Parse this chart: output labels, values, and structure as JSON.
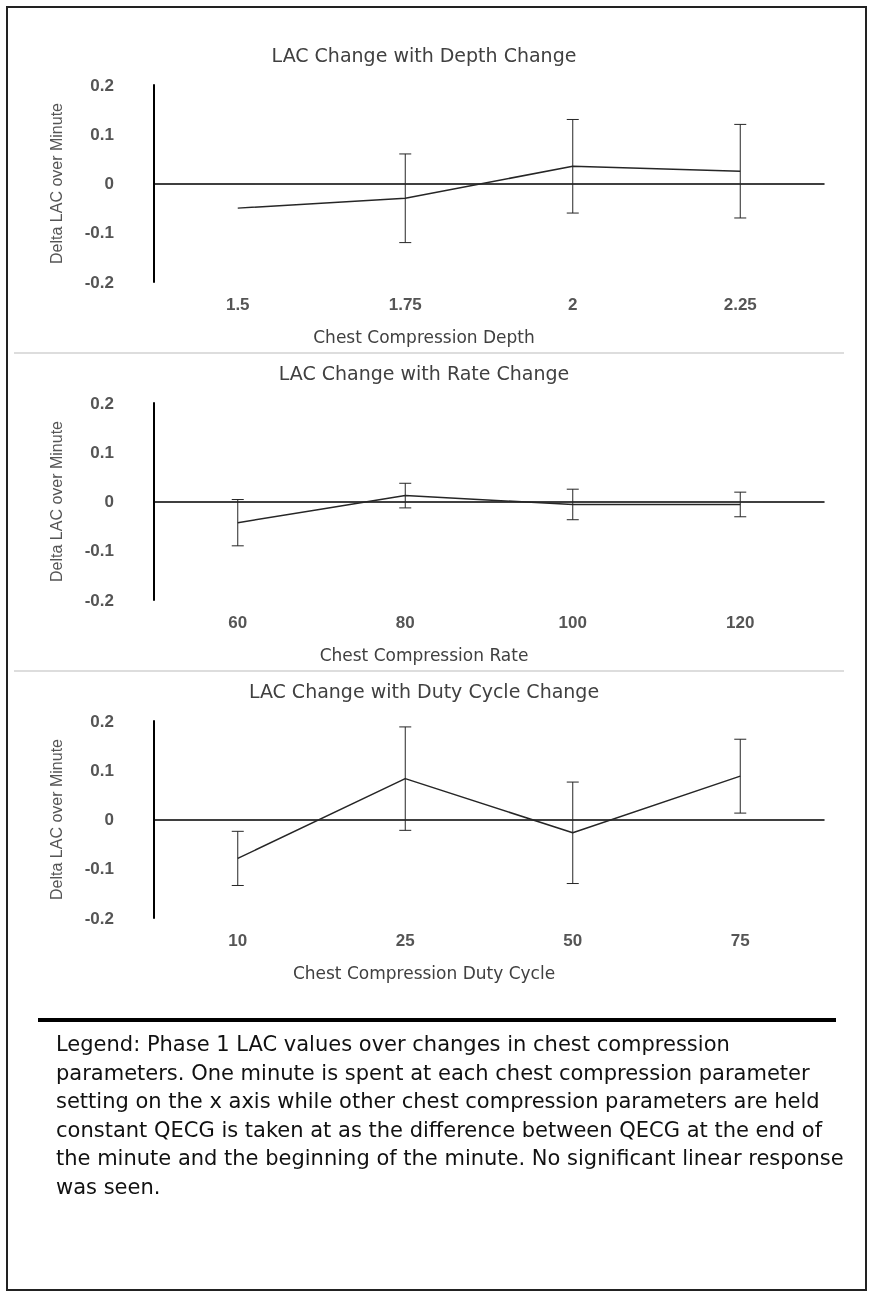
{
  "chart_data": [
    {
      "type": "line",
      "title": "LAC Change with Depth Change",
      "xlabel": "Chest Compression Depth",
      "ylabel": "Delta LAC over Minute",
      "categories": [
        "1.5",
        "1.75",
        "2",
        "2.25"
      ],
      "series": [
        {
          "color": "#262626",
          "values": [
            -0.05,
            -0.03,
            0.035,
            0.025
          ],
          "errors": [
            null,
            0.09,
            0.095,
            0.095
          ]
        }
      ],
      "ylim": [
        -0.2,
        0.2
      ],
      "yticks": [
        -0.2,
        -0.1,
        0,
        0.1,
        0.2
      ],
      "marker": "none"
    },
    {
      "type": "line",
      "title": "LAC Change with Rate Change",
      "xlabel": "Chest Compression Rate",
      "ylabel": "Delta LAC over Minute",
      "categories": [
        "60",
        "80",
        "100",
        "120"
      ],
      "series": [
        {
          "color": "#262626",
          "values": [
            -0.043,
            0.012,
            -0.006,
            -0.006
          ],
          "errors": [
            0.047,
            0.025,
            0.031,
            0.025
          ]
        }
      ],
      "ylim": [
        -0.2,
        0.2
      ],
      "yticks": [
        -0.2,
        -0.1,
        0,
        0.1,
        0.2
      ],
      "marker": "none"
    },
    {
      "type": "line",
      "title": "LAC Change with Duty Cycle Change",
      "xlabel": "Chest Compression Duty Cycle",
      "ylabel": "Delta LAC over Minute",
      "categories": [
        "10",
        "25",
        "50",
        "75"
      ],
      "series": [
        {
          "color": "#262626",
          "values": [
            -0.079,
            0.083,
            -0.027,
            0.088
          ],
          "errors": [
            0.055,
            0.105,
            0.103,
            0.075
          ]
        }
      ],
      "ylim": [
        -0.2,
        0.2
      ],
      "yticks": [
        -0.2,
        -0.1,
        0,
        0.1,
        0.2
      ],
      "marker": "none",
      "annotations": [
        "Legend: Phase 1 LAC values over changes in chest compression parameters.  One minute is spent at  each chest compression parameter setting on the x axis while other chest compression parameters are held constant  QECG is taken at as the difference between QECG at the end of the minute and the beginning of the minute.  No significant linear response was seen."
      ]
    }
  ]
}
